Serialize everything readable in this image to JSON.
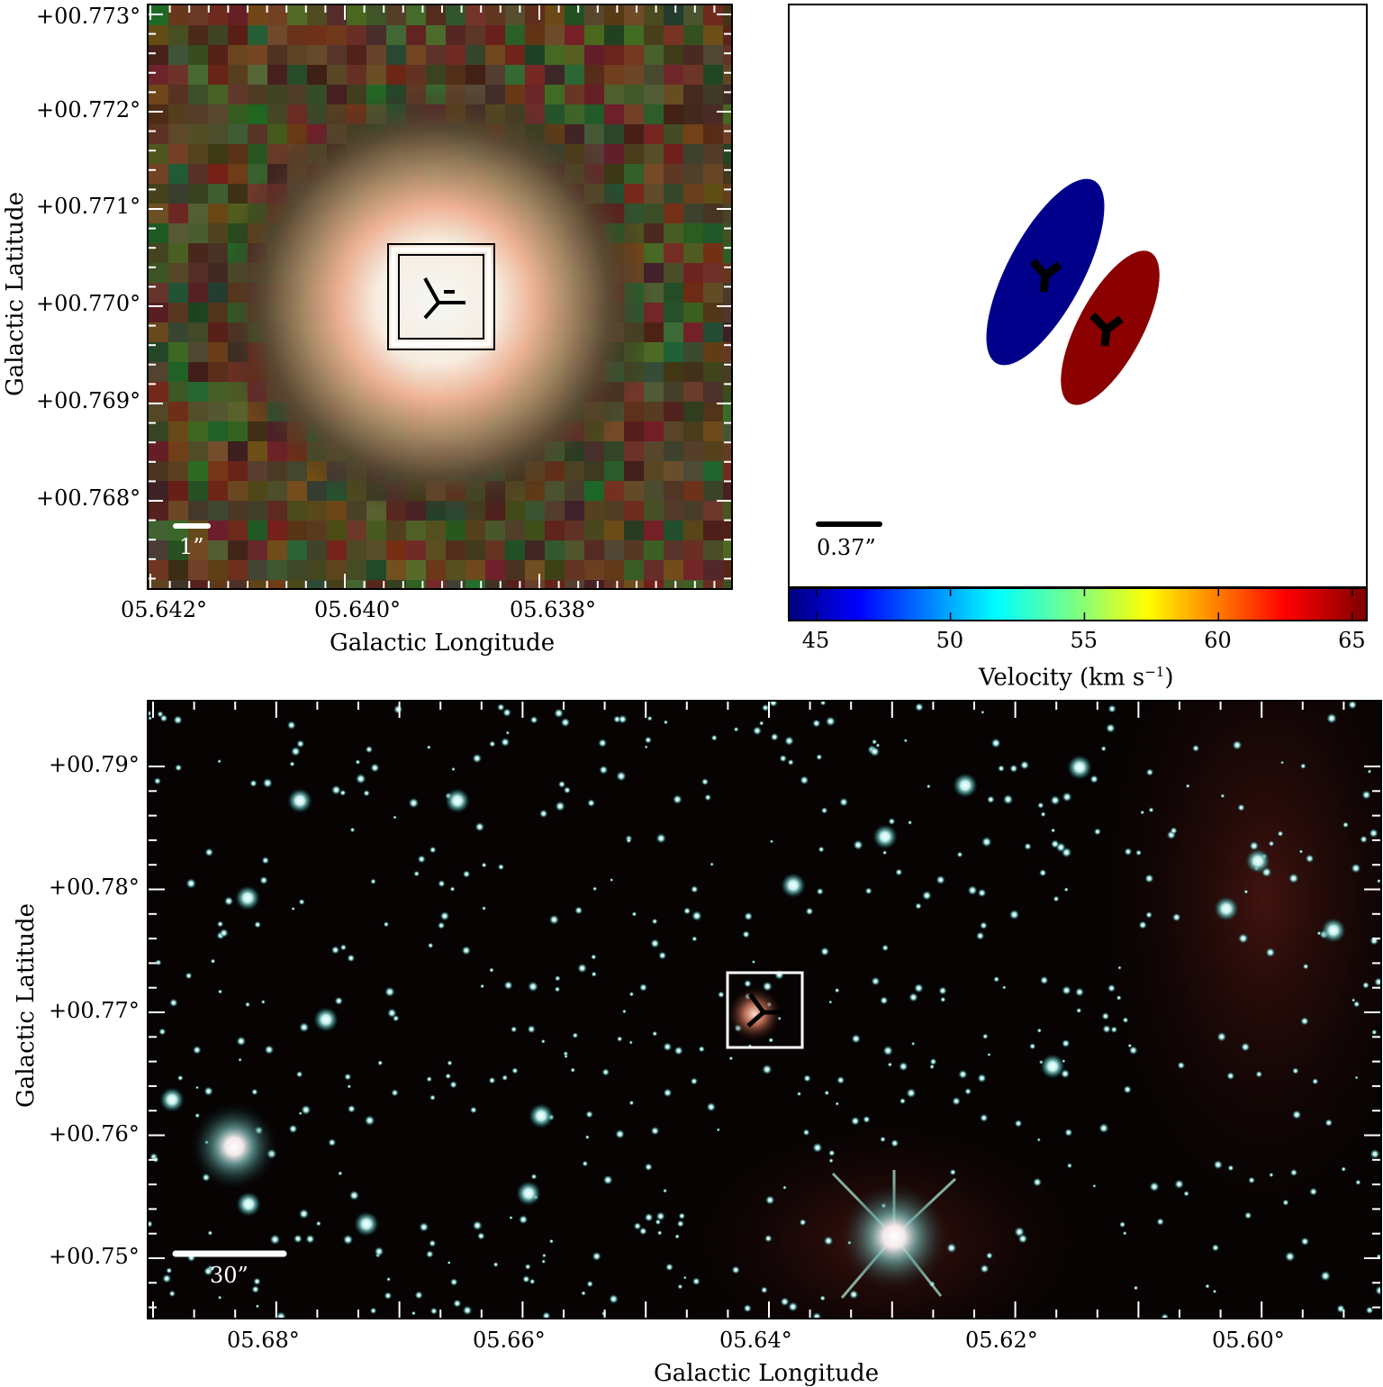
{
  "top_left": {
    "y_ticks": [
      "+00.773°",
      "+00.772°",
      "+00.771°",
      "+00.770°",
      "+00.769°",
      "+00.768°"
    ],
    "x_ticks": [
      "05.642°",
      "05.640°",
      "05.638°"
    ],
    "x_label": "Galactic Longitude",
    "y_label": "Galactic Latitude",
    "scale_bar": "1”"
  },
  "top_right": {
    "scale_bar": "0.37”",
    "colorbar": {
      "ticks": [
        "45",
        "50",
        "55",
        "60",
        "65"
      ],
      "label": "Velocity (km s",
      "label_sup": "−1",
      "label_end": ")",
      "range": [
        44,
        65.5
      ]
    },
    "ellipse_colors": [
      "#00008b",
      "#8b0000"
    ]
  },
  "bottom": {
    "y_ticks": [
      "+00.79°",
      "+00.78°",
      "+00.77°",
      "+00.76°",
      "+00.75°"
    ],
    "x_ticks": [
      "05.68°",
      "05.66°",
      "05.64°",
      "05.62°",
      "05.60°"
    ],
    "x_label": "Galactic Longitude",
    "y_label": "Galactic Latitude",
    "scale_bar": "30”"
  }
}
